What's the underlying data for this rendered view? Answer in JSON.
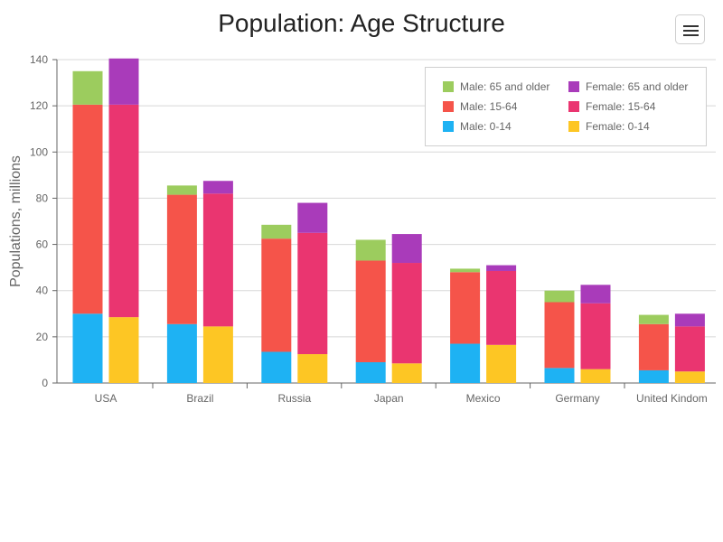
{
  "chart_data": {
    "type": "bar",
    "stacked": true,
    "grouped": true,
    "title": "Population: Age Structure",
    "xlabel": "",
    "ylabel": "Populations, millions",
    "ylim": [
      0,
      140
    ],
    "yticks": [
      0,
      20,
      40,
      60,
      80,
      100,
      120,
      140
    ],
    "grid": true,
    "legend_position": "top-right",
    "categories": [
      "USA",
      "Brazil",
      "Russia",
      "Japan",
      "Mexico",
      "Germany",
      "United Kindom"
    ],
    "series": [
      {
        "name": "Male: 0-14",
        "group": "male",
        "color": "#1eb2f3",
        "values": [
          30,
          25.5,
          13.5,
          9,
          17,
          6.5,
          5.5
        ]
      },
      {
        "name": "Male: 15-64",
        "group": "male",
        "color": "#f5544a",
        "values": [
          90.5,
          56,
          49,
          44,
          31,
          28.5,
          20
        ]
      },
      {
        "name": "Male: 65 and older",
        "group": "male",
        "color": "#9ccc5e",
        "values": [
          14.5,
          4,
          6,
          9,
          1.5,
          5,
          4
        ]
      },
      {
        "name": "Female: 0-14",
        "group": "female",
        "color": "#fdc624",
        "values": [
          28.5,
          24.5,
          12.5,
          8.5,
          16.5,
          6,
          5
        ]
      },
      {
        "name": "Female: 15-64",
        "group": "female",
        "color": "#ea3570",
        "values": [
          92,
          57.5,
          52.5,
          43.5,
          32,
          28.5,
          19.5
        ]
      },
      {
        "name": "Female: 65 and older",
        "group": "female",
        "color": "#a93bba",
        "values": [
          20,
          5.5,
          13,
          12.5,
          2.5,
          8,
          5.5
        ]
      }
    ]
  }
}
